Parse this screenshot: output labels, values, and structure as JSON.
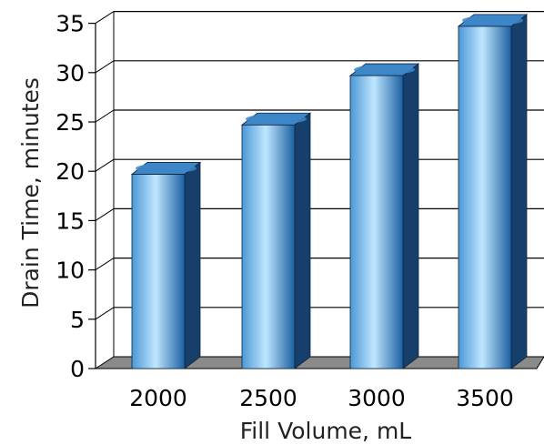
{
  "chart_data": {
    "type": "bar",
    "style": "3d-cylinder-columns",
    "title": "",
    "xlabel": "Fill Volume, mL",
    "ylabel": "Drain Time, minutes",
    "categories": [
      "2000",
      "2500",
      "3000",
      "3500"
    ],
    "series": [
      {
        "values": [
          19.7,
          24.7,
          29.7,
          34.7
        ]
      }
    ],
    "ylim": [
      0,
      35
    ],
    "yticks": [
      "0",
      "5",
      "10",
      "15",
      "20",
      "25",
      "30",
      "35"
    ],
    "ytick_values": [
      0,
      5,
      10,
      15,
      20,
      25,
      30,
      35
    ],
    "grid": "horizontal",
    "legend": "none",
    "colors": {
      "bar_light": "#bfe6ff",
      "bar_mid": "#4c98d6",
      "bar_dark": "#1b5fa0",
      "bar_side": "#173f6b",
      "bar_top": "#3d86c8",
      "floor": "#8a8a8a",
      "grid": "#000000"
    }
  }
}
